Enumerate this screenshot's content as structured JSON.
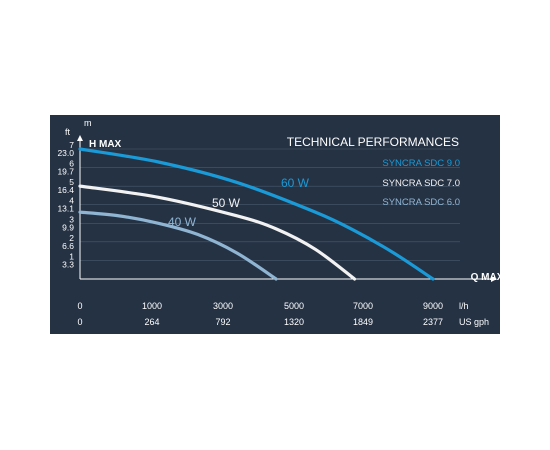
{
  "chart_data": {
    "type": "line",
    "title": "TECHNICAL PERFORMANCES",
    "y_axis": {
      "title": "H MAX",
      "unit_m": "m",
      "unit_ft": "ft",
      "ticks_m": [
        "1",
        "2",
        "3",
        "4",
        "5",
        "6",
        "7"
      ],
      "ticks_ft": [
        "3.3",
        "6.6",
        "9.9",
        "13.1",
        "16.4",
        "19.7",
        "23.0"
      ],
      "ylim_m": [
        0,
        7
      ]
    },
    "x_axis": {
      "title": "Q MAX",
      "unit_lh": "l/h",
      "unit_gph": "US gph",
      "ticks_lh": [
        "0",
        "1000",
        "3000",
        "5000",
        "7000",
        "9000"
      ],
      "ticks_gph": [
        "0",
        "264",
        "792",
        "1320",
        "1849",
        "2377"
      ]
    },
    "legend": [
      "SYNCRA SDC 9.0",
      "SYNCRA SDC 7.0",
      "SYNCRA SDC 6.0"
    ],
    "series": [
      {
        "name": "SYNCRA SDC 9.0",
        "label": "60 W",
        "color": "#1a9ad6",
        "points": [
          [
            0,
            7.0
          ],
          [
            2000,
            6.3
          ],
          [
            4000,
            5.2
          ],
          [
            6000,
            3.6
          ],
          [
            7000,
            2.6
          ],
          [
            8000,
            1.4
          ],
          [
            9000,
            0
          ]
        ]
      },
      {
        "name": "SYNCRA SDC 7.0",
        "label": "50 W",
        "color": "#f2f2f2",
        "points": [
          [
            0,
            5.0
          ],
          [
            2000,
            4.4
          ],
          [
            4000,
            3.4
          ],
          [
            5000,
            2.7
          ],
          [
            6000,
            1.6
          ],
          [
            7000,
            0
          ]
        ]
      },
      {
        "name": "SYNCRA SDC 6.0",
        "label": "40 W",
        "color": "#8fb5d3",
        "points": [
          [
            0,
            3.6
          ],
          [
            1000,
            3.4
          ],
          [
            2000,
            3.0
          ],
          [
            3000,
            2.4
          ],
          [
            4000,
            1.4
          ],
          [
            5000,
            0
          ]
        ]
      }
    ]
  }
}
